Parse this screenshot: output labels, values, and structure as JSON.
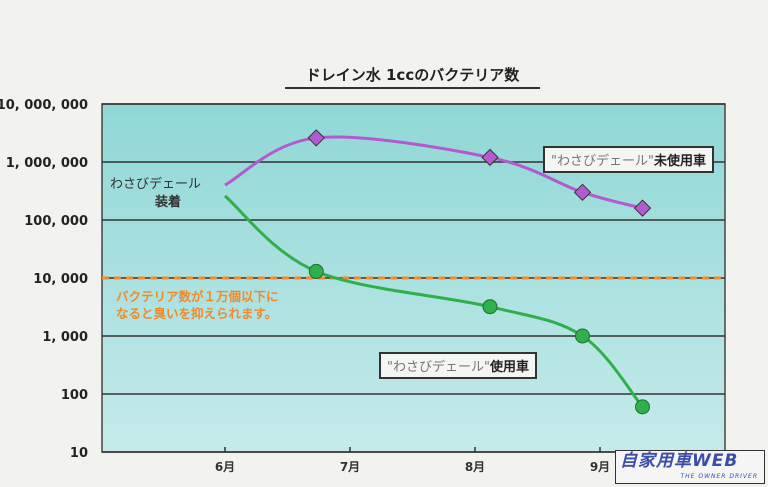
{
  "chart_data": {
    "type": "line",
    "title": "ドレイン水 1ccのバクテリア数",
    "y_scale": "log",
    "ylim": [
      10,
      10000000
    ],
    "y_ticks": [
      10,
      100,
      1000,
      10000,
      100000,
      1000000,
      10000000
    ],
    "y_tick_labels": [
      "10",
      "100",
      "1, 000",
      "10, 000",
      "100, 000",
      "1, 000, 000",
      "10, 000, 000"
    ],
    "x_ticks": [
      6,
      7,
      8,
      9
    ],
    "x_tick_labels": [
      "6月",
      "7月",
      "8月",
      "9月"
    ],
    "grid": "horizontal",
    "series": [
      {
        "name": "\"わさびデェール\"未使用車",
        "color": "#b45ad0",
        "marker": "diamond",
        "x": [
          6.0,
          6.73,
          8.12,
          8.86,
          9.34
        ],
        "values": [
          400000,
          2600000,
          1200000,
          300000,
          160000
        ]
      },
      {
        "name": "\"わさびデェール\"使用車",
        "color": "#2fb04a",
        "marker": "circle",
        "x": [
          6.0,
          6.73,
          8.12,
          8.86,
          9.34
        ],
        "values": [
          260000,
          13000,
          3200,
          1000,
          60
        ]
      }
    ],
    "threshold": {
      "value": 10000,
      "color": "#f08a2a",
      "note_line1": "バクテリア数が１万個以下に",
      "note_line2": "なると臭いを抑えられます。"
    },
    "start_label": {
      "line1": "わさびデェール",
      "line2": "装着"
    },
    "legend": {
      "unused": {
        "quoted": "\"わさびデェール\"",
        "suffix": "未使用車"
      },
      "used": {
        "quoted": "\"わさびデェール\"",
        "suffix": "使用車"
      }
    }
  },
  "watermark": {
    "main": "自家用車WEB",
    "sub": "THE OWNER DRIVER"
  }
}
